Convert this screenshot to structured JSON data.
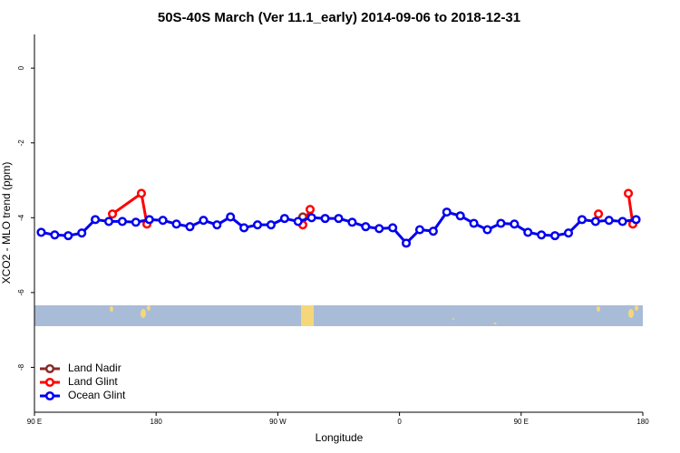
{
  "chart_data": {
    "type": "line",
    "title": "50S-40S March (Ver 11.1_early)   2014-09-06 to 2018-12-31",
    "x_label": "Longitude",
    "y_label": "XCO2 - MLO trend (ppm)",
    "xlim": [
      90,
      540
    ],
    "ylim": [
      -9.2,
      0.9
    ],
    "xticks": [
      {
        "value": 90,
        "label": "90 E"
      },
      {
        "value": 180,
        "label": "180"
      },
      {
        "value": 270,
        "label": "90 W"
      },
      {
        "value": 360,
        "label": "0"
      },
      {
        "value": 450,
        "label": "90 E"
      },
      {
        "value": 540,
        "label": "180"
      }
    ],
    "yticks": [
      0,
      -2,
      -4,
      -6,
      -8
    ],
    "legend": "bottom-left",
    "series": [
      {
        "name": "Land Nadir",
        "color": "#8b2a2a",
        "x": [
          288.5
        ],
        "values": [
          -3.98
        ]
      },
      {
        "name": "Land Glint",
        "color": "#ff0000",
        "x": [
          147.7,
          169.1,
          173.2,
          null,
          288.5,
          293.9,
          null,
          507.2,
          null,
          529.3,
          532.6
        ],
        "values": [
          -3.9,
          -3.35,
          -4.17,
          null,
          -4.19,
          -3.78,
          null,
          -3.9,
          null,
          -3.35,
          -4.17
        ]
      },
      {
        "name": "Ocean Glint",
        "color": "#0000ee",
        "x": [
          95,
          105,
          115,
          125,
          135,
          145,
          155,
          165,
          175,
          185,
          195,
          205,
          215,
          225,
          235,
          245,
          255,
          265,
          275,
          285,
          295,
          305,
          315,
          325,
          335,
          345,
          355,
          365,
          375,
          385,
          395,
          405,
          415,
          425,
          435,
          445,
          455,
          465,
          475,
          485,
          495,
          505,
          515,
          525,
          535
        ],
        "values": [
          -4.39,
          -4.46,
          -4.48,
          -4.41,
          -4.05,
          -4.1,
          -4.1,
          -4.12,
          -4.05,
          -4.07,
          -4.17,
          -4.24,
          -4.07,
          -4.19,
          -3.98,
          -4.27,
          -4.19,
          -4.19,
          -4.02,
          -4.1,
          -4.0,
          -4.02,
          -4.02,
          -4.12,
          -4.24,
          -4.29,
          -4.27,
          -4.68,
          -4.32,
          -4.36,
          -3.85,
          -3.95,
          -4.15,
          -4.32,
          -4.15,
          -4.17,
          -4.39,
          -4.46,
          -4.48,
          -4.41,
          -4.05,
          -4.1,
          -4.07,
          -4.1,
          -4.05
        ]
      }
    ]
  }
}
